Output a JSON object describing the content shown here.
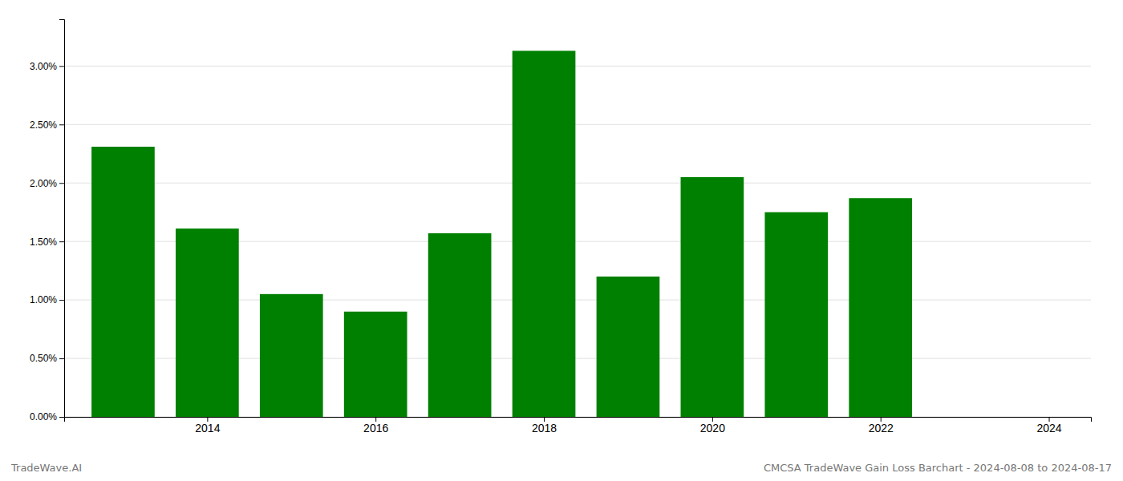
{
  "chart_data": {
    "type": "bar",
    "x": [
      2013,
      2014,
      2015,
      2016,
      2017,
      2018,
      2019,
      2020,
      2021,
      2022
    ],
    "values": [
      2.31,
      1.61,
      1.05,
      0.9,
      1.57,
      3.13,
      1.2,
      2.05,
      1.75,
      1.87
    ],
    "color": "#008000",
    "xlim": [
      2012.3,
      2024.5
    ],
    "xticks": [
      2014,
      2016,
      2018,
      2020,
      2022,
      2024
    ],
    "ylim": [
      0,
      3.4
    ],
    "yticks": [
      {
        "value": 0,
        "label": "0.00%"
      },
      {
        "value": 0.5,
        "label": "0.50%"
      },
      {
        "value": 1,
        "label": "1.00%"
      },
      {
        "value": 1.5,
        "label": "1.50%"
      },
      {
        "value": 2,
        "label": "2.00%"
      },
      {
        "value": 2.5,
        "label": "2.50%"
      },
      {
        "value": 3,
        "label": "3.00%"
      }
    ],
    "grid": true,
    "annotations": [
      "TradeWave.AI",
      "CMCSA TradeWave Gain Loss Barchart - 2024-08-08 to 2024-08-17"
    ]
  }
}
